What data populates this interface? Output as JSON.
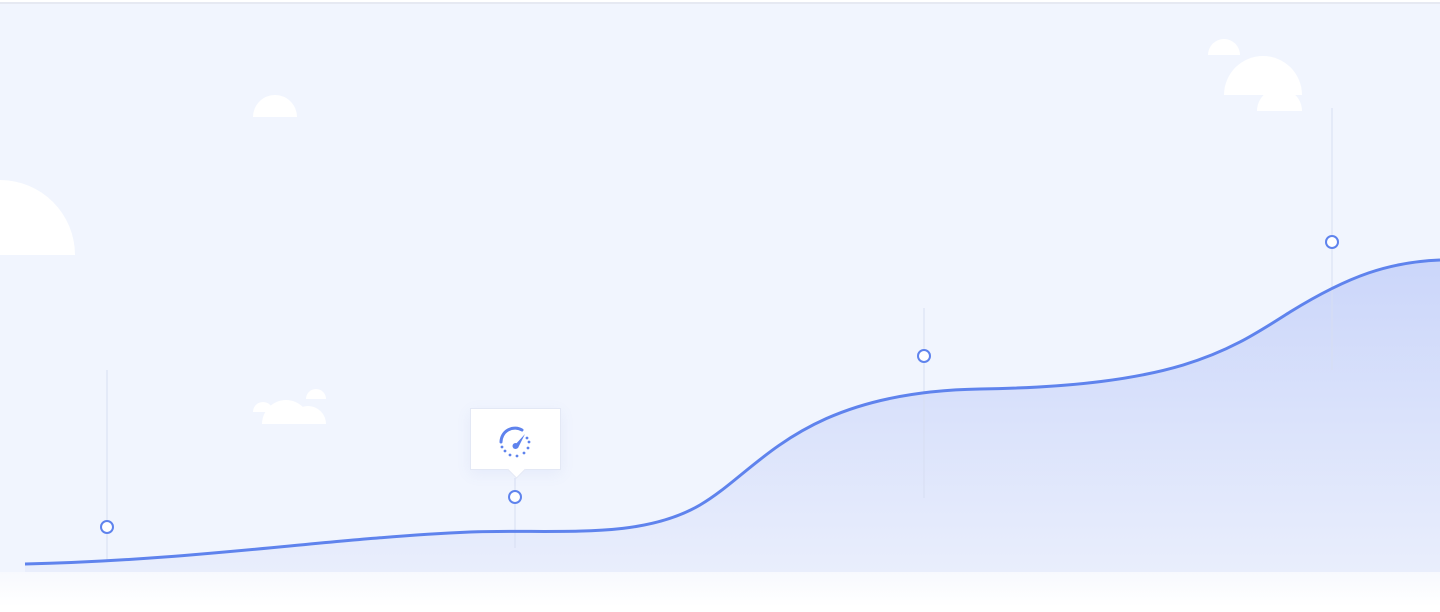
{
  "colors": {
    "background": "#f1f5fe",
    "line": "#5f83ed",
    "area_top": "#cbd6fa",
    "area_bottom": "#e8edfc",
    "marker_fill": "#ffffff",
    "cloud": "#ffffff",
    "guide": "#dbe2f3"
  },
  "tooltip": {
    "icon": "speedometer-icon"
  },
  "chart_data": {
    "type": "area",
    "x": [
      1,
      2,
      3,
      4
    ],
    "values": [
      0.12,
      0.19,
      0.58,
      0.97
    ],
    "markers": 4
  }
}
